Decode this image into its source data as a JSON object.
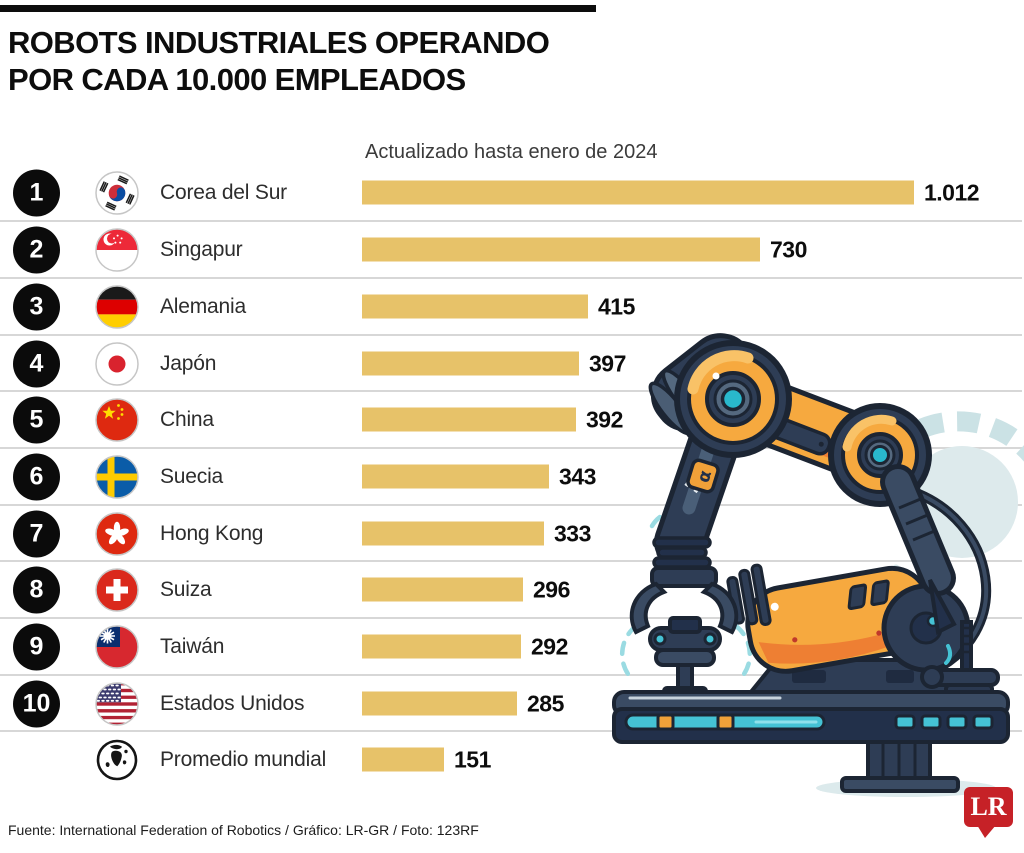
{
  "header": {
    "title_line1": "ROBOTS INDUSTRIALES OPERANDO",
    "title_line2": "POR CADA 10.000 EMPLEADOS",
    "subtitle": "Actualizado hasta enero de 2024"
  },
  "chart_data": {
    "type": "bar",
    "orientation": "horizontal",
    "title": "Robots industriales operando por cada 10.000 empleados",
    "subtitle": "Actualizado hasta enero de 2024",
    "categories": [
      "Corea del Sur",
      "Singapur",
      "Alemania",
      "Japón",
      "China",
      "Suecia",
      "Hong Kong",
      "Suiza",
      "Taiwán",
      "Estados Unidos",
      "Promedio mundial"
    ],
    "values": [
      1012,
      730,
      415,
      397,
      392,
      343,
      333,
      296,
      292,
      285,
      151
    ],
    "value_labels": [
      "1.012",
      "730",
      "415",
      "397",
      "392",
      "343",
      "333",
      "296",
      "292",
      "285",
      "151"
    ],
    "xlim": [
      0,
      1012
    ],
    "bar_color": "#e7c269",
    "grid": false,
    "legend": "none"
  },
  "rows": [
    {
      "rank": "1",
      "country": "Corea del Sur",
      "value_label": "1.012",
      "flag": "south-korea"
    },
    {
      "rank": "2",
      "country": "Singapur",
      "value_label": "730",
      "flag": "singapore"
    },
    {
      "rank": "3",
      "country": "Alemania",
      "value_label": "415",
      "flag": "germany"
    },
    {
      "rank": "4",
      "country": "Japón",
      "value_label": "397",
      "flag": "japan"
    },
    {
      "rank": "5",
      "country": "China",
      "value_label": "392",
      "flag": "china"
    },
    {
      "rank": "6",
      "country": "Suecia",
      "value_label": "343",
      "flag": "sweden"
    },
    {
      "rank": "7",
      "country": "Hong Kong",
      "value_label": "333",
      "flag": "hong-kong"
    },
    {
      "rank": "8",
      "country": "Suiza",
      "value_label": "296",
      "flag": "switzerland"
    },
    {
      "rank": "9",
      "country": "Taiwán",
      "value_label": "292",
      "flag": "taiwan"
    },
    {
      "rank": "10",
      "country": "Estados Unidos",
      "value_label": "285",
      "flag": "united-states"
    },
    {
      "rank": "",
      "country": "Promedio mundial",
      "value_label": "151",
      "flag": "world-globe"
    }
  ],
  "footer": {
    "source": "Fuente: International Federation of Robotics / Gráfico: LR-GR / Foto: 123RF",
    "logo_text": "LR"
  },
  "colors": {
    "bar": "#e7c269",
    "badge": "#0b0b0b",
    "divider": "#d7d7d7",
    "logo_red": "#c62127",
    "robot_orange": "#f6a93f",
    "robot_navy": "#2e3d55",
    "robot_teal": "#45c2d4"
  }
}
